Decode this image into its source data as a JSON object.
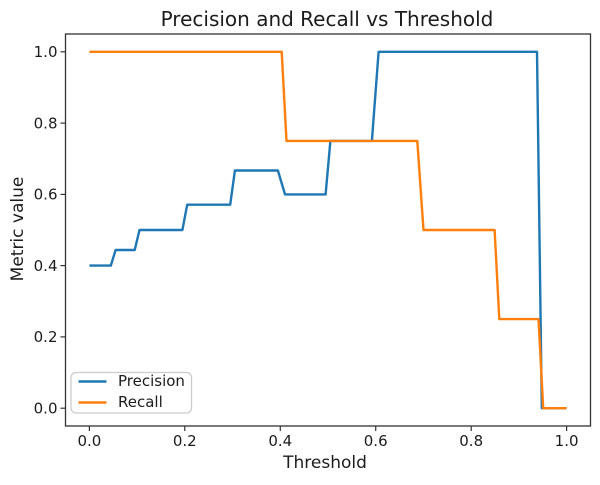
{
  "chart_data": {
    "type": "line",
    "title": "Precision and Recall vs Threshold",
    "xlabel": "Threshold",
    "ylabel": "Metric value",
    "xlim": [
      -0.05,
      1.05
    ],
    "ylim": [
      -0.05,
      1.05
    ],
    "grid": false,
    "legend_position": "lower left",
    "axis_color": "#333333",
    "text_color": "#1c1c1c",
    "x_ticks": [
      {
        "value": 0.0,
        "label": "0.0"
      },
      {
        "value": 0.2,
        "label": "0.2"
      },
      {
        "value": 0.4,
        "label": "0.4"
      },
      {
        "value": 0.6,
        "label": "0.6"
      },
      {
        "value": 0.8,
        "label": "0.8"
      },
      {
        "value": 1.0,
        "label": "1.0"
      }
    ],
    "y_ticks": [
      {
        "value": 0.0,
        "label": "0.0"
      },
      {
        "value": 0.2,
        "label": "0.2"
      },
      {
        "value": 0.4,
        "label": "0.4"
      },
      {
        "value": 0.6,
        "label": "0.6"
      },
      {
        "value": 0.8,
        "label": "0.8"
      },
      {
        "value": 1.0,
        "label": "1.0"
      }
    ],
    "series": [
      {
        "name": "Precision",
        "color": "#1f77b4",
        "points": [
          [
            0.0,
            0.4
          ],
          [
            0.045,
            0.4
          ],
          [
            0.055,
            0.444
          ],
          [
            0.095,
            0.444
          ],
          [
            0.105,
            0.5
          ],
          [
            0.195,
            0.5
          ],
          [
            0.205,
            0.571
          ],
          [
            0.295,
            0.571
          ],
          [
            0.305,
            0.667
          ],
          [
            0.395,
            0.667
          ],
          [
            0.41,
            0.6
          ],
          [
            0.495,
            0.6
          ],
          [
            0.505,
            0.75
          ],
          [
            0.592,
            0.75
          ],
          [
            0.606,
            1.0
          ],
          [
            0.938,
            1.0
          ],
          [
            0.948,
            0.0
          ],
          [
            1.0,
            0.0
          ]
        ]
      },
      {
        "name": "Recall",
        "color": "#ff7f0e",
        "points": [
          [
            0.0,
            1.0
          ],
          [
            0.403,
            1.0
          ],
          [
            0.413,
            0.75
          ],
          [
            0.687,
            0.75
          ],
          [
            0.7,
            0.5
          ],
          [
            0.849,
            0.5
          ],
          [
            0.859,
            0.25
          ],
          [
            0.941,
            0.25
          ],
          [
            0.951,
            0.0
          ],
          [
            1.0,
            0.0
          ]
        ]
      }
    ]
  }
}
